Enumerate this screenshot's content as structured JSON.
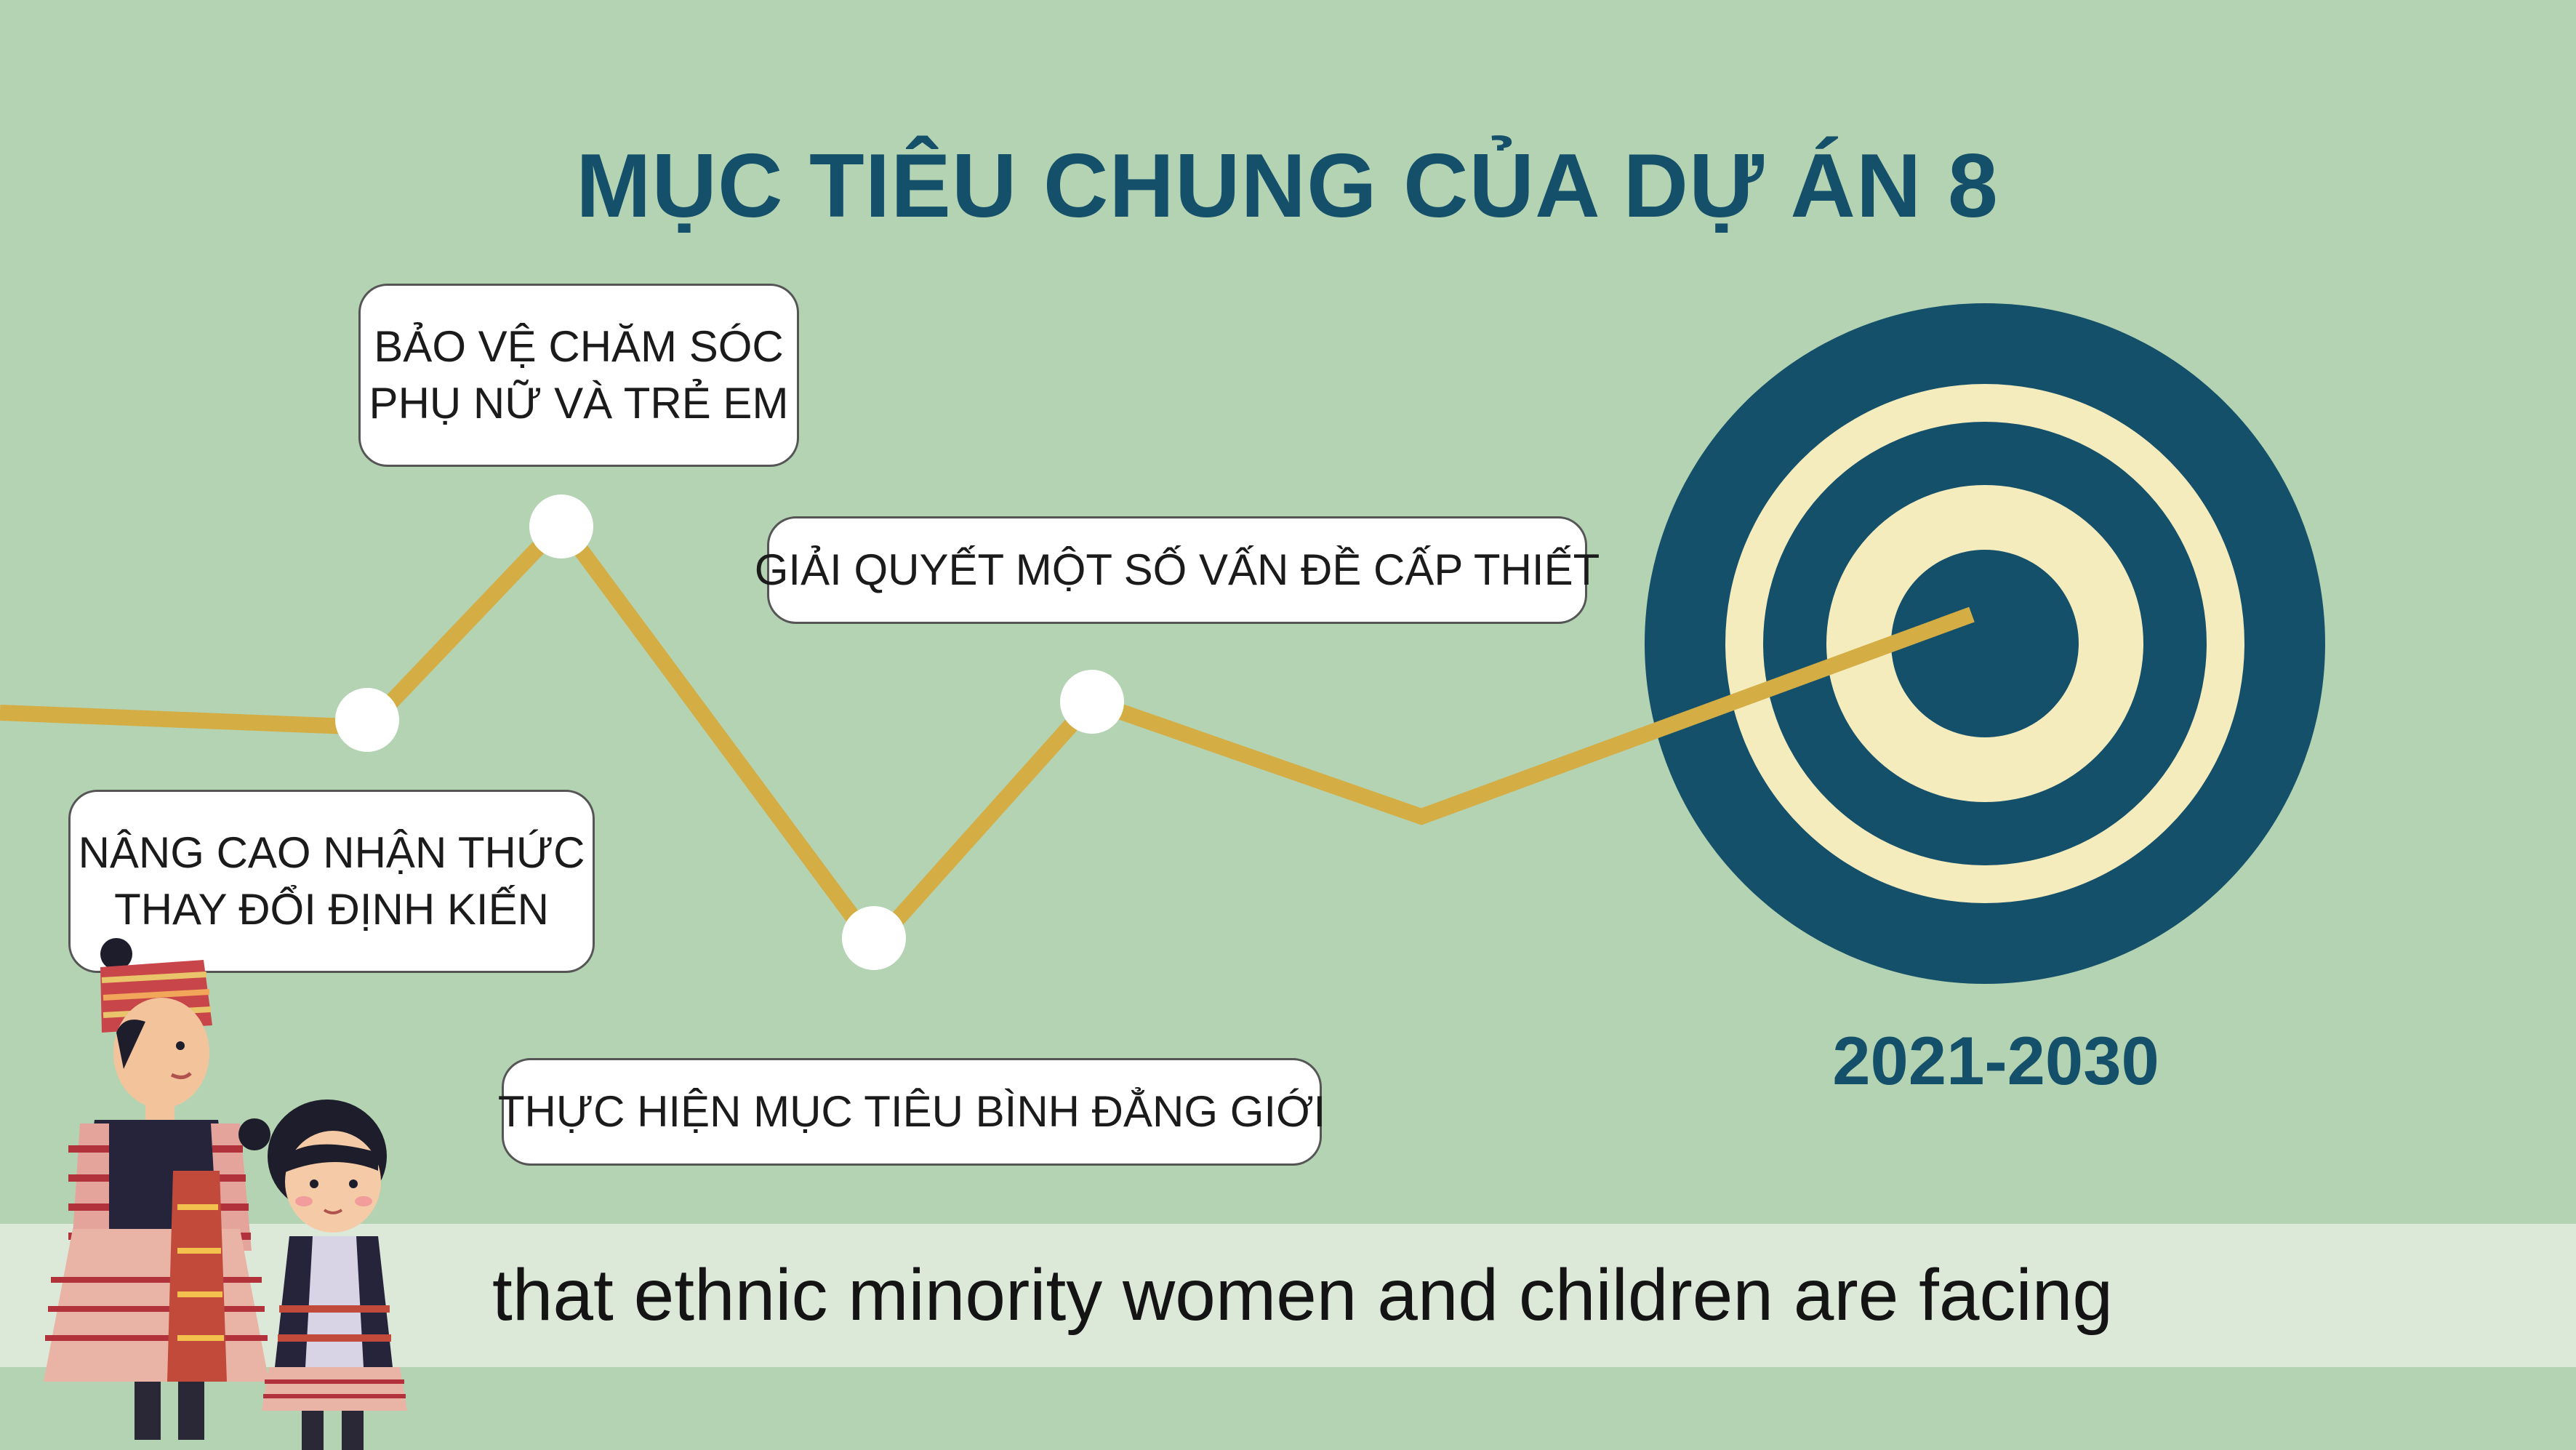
{
  "title": "MỤC TIÊU CHUNG CỦA DỰ ÁN 8",
  "bubbles": {
    "b1": {
      "line1": "BẢO VỆ CHĂM SÓC",
      "line2": "PHỤ NỮ VÀ TRẺ EM"
    },
    "b2": {
      "line1": "GIẢI QUYẾT MỘT SỐ VẤN ĐỀ CẤP THIẾT"
    },
    "b3": {
      "line1": "NÂNG CAO NHẬN THỨC",
      "line2": "THAY ĐỔI ĐỊNH KIẾN"
    },
    "b4": {
      "line1": "THỰC HIỆN MỤC TIÊU BÌNH ĐẲNG GIỚI"
    }
  },
  "year_range": "2021-2030",
  "subtitle": "that ethnic minority women and children are facing",
  "colors": {
    "background": "#b4d3b2",
    "title": "#15506a",
    "line": "#d4ad45",
    "target_dark": "#15506a",
    "target_light": "#f5ecbe"
  },
  "icons": [
    "target-icon",
    "woman-illustration",
    "girl-illustration"
  ]
}
